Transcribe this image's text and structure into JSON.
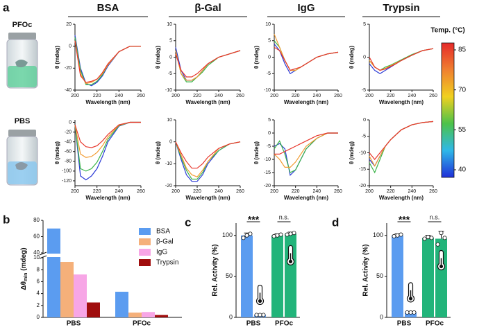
{
  "panel_labels": [
    "a",
    "b",
    "c",
    "d"
  ],
  "vial_labels": [
    "PFOc",
    "PBS"
  ],
  "chart_data": [
    {
      "type": "line",
      "title": "BSA",
      "xlabel": "Wavelength (nm)",
      "ylabel": "θ (mdeg)",
      "xlim": [
        200,
        260
      ],
      "xticks": [
        200,
        220,
        240,
        260
      ],
      "ylim": [
        -40,
        20
      ],
      "yticks": [
        -40,
        -20,
        0,
        20
      ],
      "x": [
        200,
        205,
        210,
        215,
        220,
        225,
        230,
        240,
        250,
        260
      ],
      "series": [
        {
          "color": "#2b3bd6",
          "values": [
            10,
            -20,
            -34,
            -36,
            -33,
            -27,
            -18,
            -5,
            0,
            0
          ]
        },
        {
          "color": "#3cb54a",
          "values": [
            8,
            -22,
            -35,
            -35,
            -32,
            -26,
            -17,
            -5,
            0,
            0
          ]
        },
        {
          "color": "#f29b30",
          "values": [
            5,
            -25,
            -34,
            -33,
            -30,
            -25,
            -17,
            -5,
            0,
            0
          ]
        },
        {
          "color": "#e8372c",
          "values": [
            5,
            -27,
            -33,
            -32,
            -30,
            -24,
            -16,
            -5,
            0,
            0
          ]
        }
      ]
    },
    {
      "type": "line",
      "title": "β-Gal",
      "xlabel": "Wavelength (nm)",
      "ylabel": "θ (mdeg)",
      "xlim": [
        200,
        260
      ],
      "xticks": [
        200,
        220,
        240,
        260
      ],
      "ylim": [
        -10,
        10
      ],
      "yticks": [
        -10,
        -5,
        0,
        5,
        10
      ],
      "x": [
        200,
        205,
        210,
        215,
        220,
        225,
        230,
        240,
        250,
        260
      ],
      "series": [
        {
          "color": "#2b3bd6",
          "values": [
            3,
            -4,
            -7,
            -7,
            -6,
            -4,
            -2,
            0,
            1,
            2
          ]
        },
        {
          "color": "#3cb54a",
          "values": [
            2,
            -5,
            -7.5,
            -7.5,
            -6,
            -4.5,
            -2.5,
            0,
            1,
            2
          ]
        },
        {
          "color": "#f29b30",
          "values": [
            2,
            -5,
            -7,
            -7,
            -6,
            -4,
            -2,
            0,
            1,
            2
          ]
        },
        {
          "color": "#e8372c",
          "values": [
            1,
            -4,
            -6,
            -6,
            -5,
            -3.5,
            -2,
            0,
            1,
            2
          ]
        }
      ]
    },
    {
      "type": "line",
      "title": "IgG",
      "xlabel": "Wavelength (nm)",
      "ylabel": "θ (mdeg)",
      "xlim": [
        200,
        260
      ],
      "xticks": [
        200,
        220,
        240,
        260
      ],
      "ylim": [
        -10,
        10
      ],
      "yticks": [
        -10,
        -5,
        0,
        5,
        10
      ],
      "x": [
        200,
        205,
        210,
        215,
        220,
        225,
        230,
        240,
        250,
        260
      ],
      "series": [
        {
          "color": "#2b3bd6",
          "values": [
            4,
            2,
            -2,
            -5,
            -4,
            -3,
            -2,
            0,
            1,
            1.5
          ]
        },
        {
          "color": "#3cb54a",
          "values": [
            5,
            3,
            -1,
            -4,
            -4,
            -3,
            -2,
            0,
            1,
            1.5
          ]
        },
        {
          "color": "#f29b30",
          "values": [
            7,
            3,
            -1,
            -4,
            -4,
            -3,
            -2,
            0,
            1,
            1.5
          ]
        },
        {
          "color": "#e8372c",
          "values": [
            3,
            2,
            -1,
            -4,
            -3.5,
            -3,
            -2,
            0,
            1,
            1.5
          ]
        }
      ]
    },
    {
      "type": "line",
      "title": "Trypsin",
      "xlabel": "Wavelength (nm)",
      "ylabel": "θ (mdeg)",
      "xlim": [
        200,
        260
      ],
      "xticks": [
        200,
        220,
        240,
        260
      ],
      "ylim": [
        -5,
        5
      ],
      "yticks": [
        -5,
        0,
        5
      ],
      "x": [
        200,
        205,
        210,
        215,
        220,
        225,
        230,
        240,
        250,
        260
      ],
      "series": [
        {
          "color": "#2b3bd6",
          "values": [
            -1,
            -2,
            -2.5,
            -2,
            -1.5,
            -1,
            -0.5,
            0.3,
            1,
            1.3
          ]
        },
        {
          "color": "#3cb54a",
          "values": [
            -0.5,
            -1.5,
            -2,
            -1.5,
            -1.2,
            -0.8,
            -0.4,
            0.4,
            1,
            1.3
          ]
        },
        {
          "color": "#f29b30",
          "values": [
            -0.5,
            -1.5,
            -2,
            -1.7,
            -1.3,
            -0.9,
            -0.5,
            0.3,
            1,
            1.3
          ]
        },
        {
          "color": "#e8372c",
          "values": [
            0,
            -1.5,
            -2,
            -1.8,
            -1.4,
            -1,
            -0.5,
            0.3,
            1,
            1.3
          ]
        }
      ]
    },
    {
      "type": "line",
      "xlabel": "Wavelength (nm)",
      "ylabel": "θ (mdeg)",
      "xlim": [
        200,
        260
      ],
      "xticks": [
        200,
        220,
        240,
        260
      ],
      "ylim": [
        -130,
        5
      ],
      "yticks": [
        -120,
        -100,
        -80,
        -60,
        -40,
        -20,
        0
      ],
      "x": [
        200,
        205,
        210,
        215,
        220,
        225,
        230,
        240,
        250,
        260
      ],
      "series": [
        {
          "color": "#2b3bd6",
          "values": [
            -5,
            -110,
            -118,
            -110,
            -95,
            -70,
            -40,
            -8,
            0,
            0
          ]
        },
        {
          "color": "#3cb54a",
          "values": [
            -5,
            -95,
            -100,
            -95,
            -82,
            -60,
            -35,
            -7,
            0,
            0
          ]
        },
        {
          "color": "#f29b30",
          "values": [
            -5,
            -65,
            -72,
            -70,
            -62,
            -48,
            -30,
            -6,
            0,
            0
          ]
        },
        {
          "color": "#e8372c",
          "values": [
            -5,
            -40,
            -50,
            -52,
            -48,
            -38,
            -25,
            -5,
            0,
            0
          ]
        }
      ]
    },
    {
      "type": "line",
      "xlabel": "Wavelength (nm)",
      "ylabel": "θ (mdeg)",
      "xlim": [
        200,
        260
      ],
      "xticks": [
        200,
        220,
        240,
        260
      ],
      "ylim": [
        -20,
        10
      ],
      "yticks": [
        -20,
        -10,
        0,
        10
      ],
      "x": [
        200,
        205,
        210,
        215,
        220,
        225,
        230,
        240,
        250,
        260
      ],
      "series": [
        {
          "color": "#2b3bd6",
          "values": [
            0,
            -8,
            -15,
            -18,
            -18,
            -15,
            -10,
            -4,
            -1,
            0
          ]
        },
        {
          "color": "#3cb54a",
          "values": [
            0,
            -7,
            -13,
            -17,
            -17,
            -14,
            -9,
            -4,
            -1,
            0
          ]
        },
        {
          "color": "#f29b30",
          "values": [
            0,
            -6,
            -12,
            -15,
            -16,
            -13,
            -9,
            -3,
            -1,
            0
          ]
        },
        {
          "color": "#e8372c",
          "values": [
            0,
            -5,
            -9,
            -12,
            -12,
            -10,
            -7,
            -3,
            -1,
            0
          ]
        }
      ]
    },
    {
      "type": "line",
      "xlabel": "Wavelength (nm)",
      "ylabel": "θ (mdeg)",
      "xlim": [
        200,
        260
      ],
      "xticks": [
        200,
        220,
        240,
        260
      ],
      "ylim": [
        -20,
        5
      ],
      "yticks": [
        -20,
        -15,
        -10,
        -5,
        0,
        5
      ],
      "x": [
        200,
        205,
        210,
        215,
        220,
        225,
        230,
        240,
        250,
        260
      ],
      "series": [
        {
          "color": "#2b3bd6",
          "values": [
            -5,
            -4,
            -6,
            -16,
            -14,
            -10,
            -6,
            -2,
            0,
            0
          ]
        },
        {
          "color": "#3cb54a",
          "values": [
            -6,
            -3,
            -8,
            -15,
            -14,
            -10,
            -6,
            -2,
            0,
            0
          ]
        },
        {
          "color": "#f29b30",
          "values": [
            -8,
            -10,
            -13,
            -13,
            -11,
            -8,
            -5,
            -2,
            0,
            0
          ]
        },
        {
          "color": "#e8372c",
          "values": [
            -8,
            -8,
            -7,
            -6,
            -5,
            -4,
            -3,
            -1,
            0,
            0
          ]
        }
      ]
    },
    {
      "type": "line",
      "xlabel": "Wavelength (nm)",
      "ylabel": "θ (mdeg)",
      "xlim": [
        200,
        260
      ],
      "xticks": [
        200,
        220,
        240,
        260
      ],
      "ylim": [
        -20,
        0
      ],
      "yticks": [
        -20,
        -15,
        -10,
        -5,
        0
      ],
      "x": [
        200,
        205,
        210,
        215,
        220,
        225,
        230,
        240,
        250,
        260
      ],
      "series": [
        {
          "color": "#2b3bd6",
          "values": [
            -12,
            -14,
            -11,
            -8,
            -6,
            -4.5,
            -3,
            -1.5,
            -0.8,
            -0.5
          ]
        },
        {
          "color": "#3cb54a",
          "values": [
            -13,
            -16,
            -12,
            -8,
            -6,
            -4.5,
            -3,
            -1.5,
            -0.8,
            -0.5
          ]
        },
        {
          "color": "#f29b30",
          "values": [
            -11,
            -14,
            -11,
            -8,
            -6,
            -4.5,
            -3,
            -1.5,
            -0.8,
            -0.5
          ]
        },
        {
          "color": "#e8372c",
          "values": [
            -10,
            -12,
            -10,
            -8,
            -6,
            -4.5,
            -3,
            -1.5,
            -0.8,
            -0.5
          ]
        }
      ]
    },
    {
      "type": "colorbar",
      "title": "Temp. (°C)",
      "lim": [
        40,
        85
      ],
      "ticks": [
        40,
        55,
        70,
        85
      ],
      "colors": [
        "#1f2fd8",
        "#2fb8e8",
        "#4cc24a",
        "#f0d020",
        "#f08030",
        "#e52a2a"
      ]
    },
    {
      "type": "groupedbar",
      "ylabel": "Δθ",
      "ylabel_sub": "min",
      "ylabel_unit": " (mdeg)",
      "categories": [
        "PBS",
        "PFOc"
      ],
      "ylim": [
        0,
        80
      ],
      "ybreak": [
        10,
        40
      ],
      "yticks": [
        0,
        2,
        4,
        6,
        8,
        10,
        40,
        60,
        80
      ],
      "series": [
        {
          "name": "BSA",
          "color": "#5b9cf0",
          "values": [
            70,
            4.3
          ]
        },
        {
          "name": "β-Gal",
          "color": "#f5b07a",
          "values": [
            9.3,
            0.8
          ]
        },
        {
          "name": "IgG",
          "color": "#f7a6e6",
          "values": [
            7.2,
            0.9
          ]
        },
        {
          "name": "Trypsin",
          "color": "#a00d0d",
          "values": [
            2.5,
            0.4
          ]
        }
      ]
    },
    {
      "type": "bar",
      "ylabel": "Rel. Activity (%)",
      "categories": [
        "PBS",
        null,
        "PFOc",
        null
      ],
      "ylim": [
        0,
        115
      ],
      "yticks": [
        0,
        50,
        100
      ],
      "values": [
        100,
        3,
        100,
        102
      ],
      "errors": [
        3,
        0.5,
        2,
        2
      ],
      "colors": [
        "#5b9cf0",
        "#5b9cf0",
        "#22b47a",
        "#22b47a"
      ],
      "points": [
        [
          97,
          100,
          102
        ],
        [
          3,
          3,
          3
        ],
        [
          99,
          100,
          101
        ],
        [
          101,
          102,
          103
        ]
      ],
      "annotations": [
        "***",
        "n.s."
      ]
    },
    {
      "type": "bar",
      "ylabel": "Rel. Activity (%)",
      "categories": [
        "PBS",
        null,
        "PFOc",
        null
      ],
      "ylim": [
        0,
        115
      ],
      "yticks": [
        0,
        50,
        100
      ],
      "values": [
        100,
        6,
        97,
        96
      ],
      "errors": [
        2,
        1,
        3,
        9
      ],
      "colors": [
        "#5b9cf0",
        "#5b9cf0",
        "#22b47a",
        "#22b47a"
      ],
      "points": [
        [
          99,
          100,
          101
        ],
        [
          6,
          6,
          6
        ],
        [
          96,
          98,
          97
        ],
        [
          89,
          103,
          97
        ]
      ],
      "annotations": [
        "***",
        "n.s."
      ]
    }
  ]
}
